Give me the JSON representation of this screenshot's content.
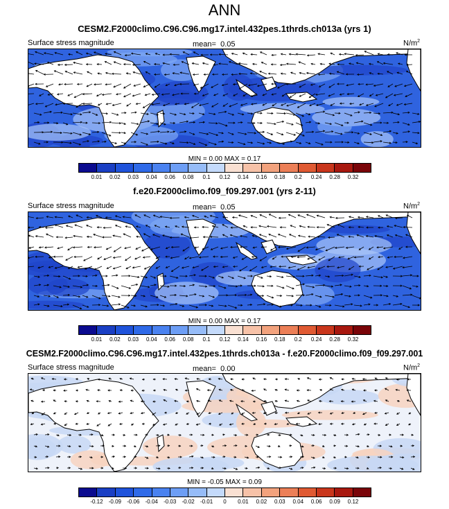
{
  "main_title": "ANN",
  "panels": [
    {
      "title": "CESM2.F2000climo.C96.C96.mg17.intel.432pes.1thrds.ch013a (yrs 1)",
      "variable": "Surface stress magnitude",
      "mean_label": "mean=",
      "mean_value": "0.05",
      "units": "N/m",
      "units_sup": "2",
      "min_max": "MIN =   0.00 MAX =   0.17",
      "colorbar_ticks": [
        "0.01",
        "0.02",
        "0.03",
        "0.04",
        "0.06",
        "0.08",
        "0.1",
        "0.12",
        "0.14",
        "0.16",
        "0.18",
        "0.2",
        "0.24",
        "0.28",
        "0.32"
      ],
      "colorbar_colors": [
        "#0b0b8f",
        "#1a3fc4",
        "#1f53db",
        "#2f6ae8",
        "#4a82f0",
        "#6d9ef5",
        "#96bcf8",
        "#c4dafb",
        "#f9e0d2",
        "#f7c2a8",
        "#f2a27d",
        "#ec7f57",
        "#e05a33",
        "#c9361c",
        "#a8180f",
        "#7a0509"
      ]
    },
    {
      "title": "f.e20.F2000climo.f09_f09.297.001 (yrs 2-11)",
      "variable": "Surface stress magnitude",
      "mean_label": "mean=",
      "mean_value": "0.05",
      "units": "N/m",
      "units_sup": "2",
      "min_max": "MIN =   0.00 MAX =   0.17",
      "colorbar_ticks": [
        "0.01",
        "0.02",
        "0.03",
        "0.04",
        "0.06",
        "0.08",
        "0.1",
        "0.12",
        "0.14",
        "0.16",
        "0.18",
        "0.2",
        "0.24",
        "0.28",
        "0.32"
      ],
      "colorbar_colors": [
        "#0b0b8f",
        "#1a3fc4",
        "#1f53db",
        "#2f6ae8",
        "#4a82f0",
        "#6d9ef5",
        "#96bcf8",
        "#c4dafb",
        "#f9e0d2",
        "#f7c2a8",
        "#f2a27d",
        "#ec7f57",
        "#e05a33",
        "#c9361c",
        "#a8180f",
        "#7a0509"
      ]
    },
    {
      "title": "CESM2.F2000climo.C96.C96.mg17.intel.432pes.1thrds.ch013a - f.e20.F2000climo.f09_f09.297.001",
      "variable": "Surface stress magnitude",
      "mean_label": "mean=",
      "mean_value": "0.00",
      "units": "N/m",
      "units_sup": "2",
      "min_max": "MIN =  -0.05 MAX =   0.09",
      "colorbar_ticks": [
        "-0.12",
        "-0.09",
        "-0.06",
        "-0.04",
        "-0.03",
        "-0.02",
        "-0.01",
        "0",
        "0.01",
        "0.02",
        "0.03",
        "0.04",
        "0.06",
        "0.09",
        "0.12"
      ],
      "colorbar_colors": [
        "#0b0b8f",
        "#1a3fc4",
        "#1f53db",
        "#2f6ae8",
        "#4a82f0",
        "#6d9ef5",
        "#96bcf8",
        "#c4dafb",
        "#f9e0d2",
        "#f7c2a8",
        "#f2a27d",
        "#ec7f57",
        "#e05a33",
        "#c9361c",
        "#a8180f",
        "#7a0509"
      ]
    }
  ]
}
